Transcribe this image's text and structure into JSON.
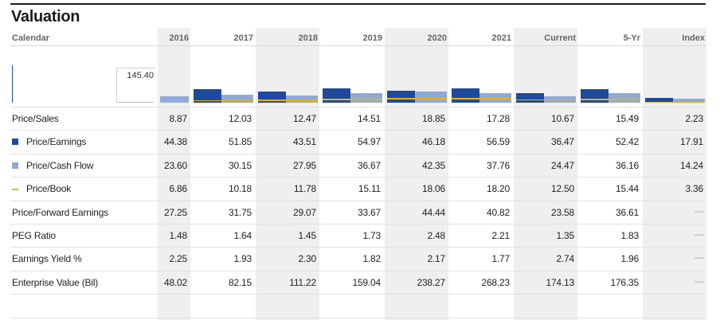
{
  "title": "Valuation",
  "header": {
    "calendar_label": "Calendar",
    "columns": [
      "2016",
      "2017",
      "2018",
      "2019",
      "2020",
      "2021",
      "Current",
      "5-Yr",
      "Index"
    ]
  },
  "axis_label": "145.40",
  "colors": {
    "price_earnings": "#1e4a9c",
    "price_cash_flow": "#8fa9d8",
    "price_book": "#e8b400",
    "shade": "#efefef"
  },
  "chart_data": {
    "type": "bar",
    "title": "",
    "categories": [
      "2016",
      "2017",
      "2018",
      "2019",
      "2020",
      "2021",
      "Current",
      "5-Yr",
      "Index"
    ],
    "ylim": [
      0,
      145.4
    ],
    "series": [
      {
        "name": "Price/Earnings",
        "values": [
          44.38,
          51.85,
          43.51,
          54.97,
          46.18,
          56.59,
          36.47,
          52.42,
          17.91
        ]
      },
      {
        "name": "Price/Cash Flow",
        "values": [
          23.6,
          30.15,
          27.95,
          36.67,
          42.35,
          37.76,
          24.47,
          36.16,
          14.24
        ]
      },
      {
        "name": "Price/Book",
        "values": [
          6.86,
          10.18,
          11.78,
          15.11,
          18.06,
          18.2,
          12.5,
          15.44,
          3.36
        ]
      }
    ]
  },
  "rows": [
    {
      "label": "Price/Sales",
      "legend": "",
      "values": [
        "8.87",
        "12.03",
        "12.47",
        "14.51",
        "18.85",
        "17.28",
        "10.67",
        "15.49",
        "2.23"
      ]
    },
    {
      "label": "Price/Earnings",
      "legend": "pe",
      "values": [
        "44.38",
        "51.85",
        "43.51",
        "54.97",
        "46.18",
        "56.59",
        "36.47",
        "52.42",
        "17.91"
      ]
    },
    {
      "label": "Price/Cash Flow",
      "legend": "pcf",
      "values": [
        "23.60",
        "30.15",
        "27.95",
        "36.67",
        "42.35",
        "37.76",
        "24.47",
        "36.16",
        "14.24"
      ]
    },
    {
      "label": "Price/Book",
      "legend": "pb",
      "values": [
        "6.86",
        "10.18",
        "11.78",
        "15.11",
        "18.06",
        "18.20",
        "12.50",
        "15.44",
        "3.36"
      ]
    },
    {
      "label": "Price/Forward Earnings",
      "legend": "",
      "values": [
        "27.25",
        "31.75",
        "29.07",
        "33.67",
        "44.44",
        "40.82",
        "23.58",
        "36.61",
        "—"
      ]
    },
    {
      "label": "PEG Ratio",
      "legend": "",
      "values": [
        "1.48",
        "1.64",
        "1.45",
        "1.73",
        "2.48",
        "2.21",
        "1.35",
        "1.83",
        "—"
      ]
    },
    {
      "label": "Earnings Yield %",
      "legend": "",
      "values": [
        "2.25",
        "1.93",
        "2.30",
        "1.82",
        "2.17",
        "1.77",
        "2.74",
        "1.96",
        "—"
      ]
    },
    {
      "label": "Enterprise Value (Bil)",
      "legend": "",
      "values": [
        "48.02",
        "82.15",
        "111.22",
        "159.04",
        "238.27",
        "268.23",
        "174.13",
        "176.35",
        "—"
      ]
    }
  ]
}
